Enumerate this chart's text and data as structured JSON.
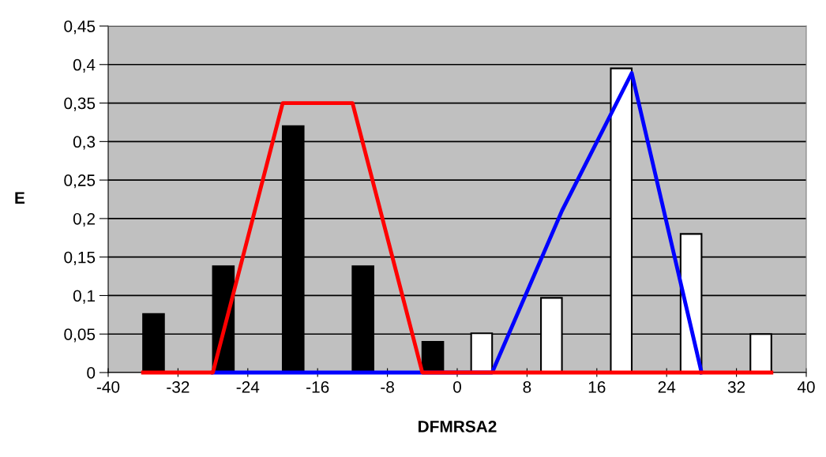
{
  "chart_data": {
    "type": "bar",
    "xlabel": "DFMRSA2",
    "ylabel": "E",
    "series": [
      {
        "color": "#ffffff",
        "x": [
          4,
          12,
          20,
          28,
          36
        ],
        "values": [
          0.051,
          0.097,
          0.395,
          0.18,
          0.05
        ]
      },
      {
        "color": "#000000",
        "x": [
          -36,
          -28,
          -20,
          -12,
          -4
        ],
        "values": [
          0.076,
          0.138,
          0.32,
          0.138,
          0.04
        ]
      },
      {
        "type": "line",
        "color": "#0000ff",
        "x": [
          -28,
          -20,
          -12,
          -4,
          4,
          12,
          20,
          28
        ],
        "values": [
          0,
          0,
          0,
          0,
          0,
          0.21,
          0.389,
          0
        ]
      },
      {
        "type": "line",
        "color": "#ff0000",
        "x": [
          -36,
          -28,
          -20,
          -12,
          -4,
          4,
          12,
          20,
          28,
          36
        ],
        "values": [
          0,
          0,
          0.35,
          0.35,
          0,
          0,
          0,
          0,
          0,
          0
        ]
      }
    ],
    "xlim": [
      -40,
      40
    ],
    "xticks": [
      -40,
      -32,
      -24,
      -16,
      -8,
      0,
      8,
      16,
      24,
      32,
      40
    ],
    "ylim": [
      0,
      0.45
    ],
    "yticks": [
      0,
      {
        "value": 0.05,
        "label": "0,05"
      },
      {
        "value": 0.1,
        "label": "0,1"
      },
      {
        "value": 0.15,
        "label": "0,15"
      },
      {
        "value": 0.2,
        "label": "0,2"
      },
      {
        "value": 0.25,
        "label": "0,25"
      },
      {
        "value": 0.3,
        "label": "0,3"
      },
      {
        "value": 0.35,
        "label": "0,35"
      },
      {
        "value": 0.4,
        "label": "0,4"
      },
      {
        "value": 0.45,
        "label": "0,45"
      }
    ],
    "grid": "y"
  }
}
